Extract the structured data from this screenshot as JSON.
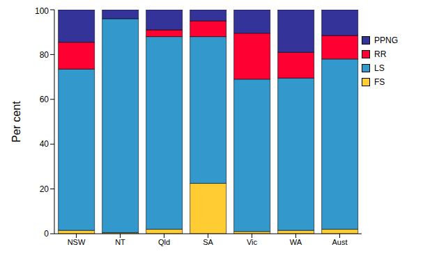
{
  "chart_data": {
    "type": "bar",
    "stacked": true,
    "y_label": "Per cent",
    "categories": [
      "NSW",
      "NT",
      "Qld",
      "SA",
      "Vic",
      "WA",
      "Aust"
    ],
    "series": [
      {
        "name": "FS",
        "color": "#ffcc33",
        "values": [
          1.5,
          0.5,
          2,
          22.5,
          1,
          1.5,
          2
        ]
      },
      {
        "name": "LS",
        "color": "#3399cc",
        "values": [
          72,
          95.5,
          86,
          65.5,
          68,
          68,
          76
        ]
      },
      {
        "name": "RR",
        "color": "#ff0033",
        "values": [
          12,
          0,
          3,
          7,
          20.5,
          11.5,
          10.5
        ]
      },
      {
        "name": "PPNG",
        "color": "#333399",
        "values": [
          14.5,
          4,
          9,
          5,
          10.5,
          19,
          11.5
        ]
      }
    ],
    "ylim": [
      0,
      100
    ],
    "yticks": [
      0,
      20,
      40,
      60,
      80,
      100
    ],
    "grid": false,
    "legend": "right"
  }
}
